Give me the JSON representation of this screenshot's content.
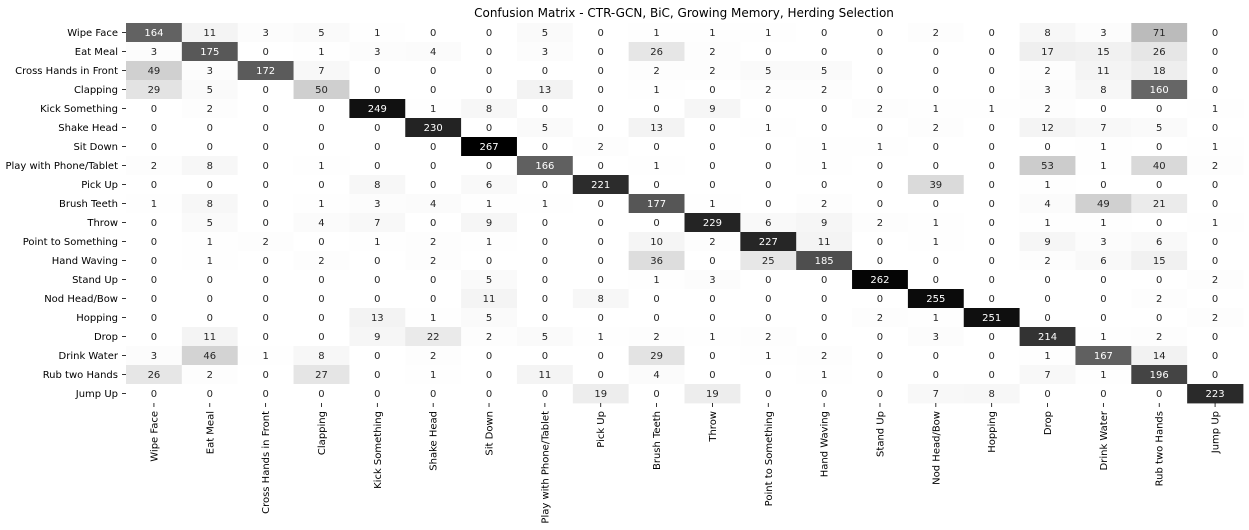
{
  "chart_data": {
    "type": "heatmap",
    "title": "Confusion Matrix - CTR-GCN, BiC, Growing Memory, Herding Selection",
    "colormap": "gray-reversed",
    "colorbar": false,
    "grid": false,
    "legend": "none",
    "vmin": 0,
    "vmax": 267,
    "labels": [
      "Wipe Face",
      "Eat Meal",
      "Cross Hands in Front",
      "Clapping",
      "Kick Something",
      "Shake Head",
      "Sit Down",
      "Play with Phone/Tablet",
      "Pick Up",
      "Brush Teeth",
      "Throw",
      "Point to Something",
      "Hand Waving",
      "Stand Up",
      "Nod Head/Bow",
      "Hopping",
      "Drop",
      "Drink Water",
      "Rub two Hands",
      "Jump Up"
    ],
    "matrix": [
      [
        164,
        11,
        3,
        5,
        1,
        0,
        0,
        5,
        0,
        1,
        1,
        1,
        0,
        0,
        2,
        0,
        8,
        3,
        71,
        0
      ],
      [
        3,
        175,
        0,
        1,
        3,
        4,
        0,
        3,
        0,
        26,
        2,
        0,
        0,
        0,
        0,
        0,
        17,
        15,
        26,
        0
      ],
      [
        49,
        3,
        172,
        7,
        0,
        0,
        0,
        0,
        0,
        2,
        2,
        5,
        5,
        0,
        0,
        0,
        2,
        11,
        18,
        0
      ],
      [
        29,
        5,
        0,
        50,
        0,
        0,
        0,
        13,
        0,
        1,
        0,
        2,
        2,
        0,
        0,
        0,
        3,
        8,
        160,
        0
      ],
      [
        0,
        2,
        0,
        0,
        249,
        1,
        8,
        0,
        0,
        0,
        9,
        0,
        0,
        2,
        1,
        1,
        2,
        0,
        0,
        1
      ],
      [
        0,
        0,
        0,
        0,
        0,
        230,
        0,
        5,
        0,
        13,
        0,
        1,
        0,
        0,
        2,
        0,
        12,
        7,
        5,
        0
      ],
      [
        0,
        0,
        0,
        0,
        0,
        0,
        267,
        0,
        2,
        0,
        0,
        0,
        1,
        1,
        0,
        0,
        0,
        1,
        0,
        1
      ],
      [
        2,
        8,
        0,
        1,
        0,
        0,
        0,
        166,
        0,
        1,
        0,
        0,
        1,
        0,
        0,
        0,
        53,
        1,
        40,
        2
      ],
      [
        0,
        0,
        0,
        0,
        8,
        0,
        6,
        0,
        221,
        0,
        0,
        0,
        0,
        0,
        39,
        0,
        1,
        0,
        0,
        0
      ],
      [
        1,
        8,
        0,
        1,
        3,
        4,
        1,
        1,
        0,
        177,
        1,
        0,
        2,
        0,
        0,
        0,
        4,
        49,
        21,
        0
      ],
      [
        0,
        5,
        0,
        4,
        7,
        0,
        9,
        0,
        0,
        0,
        229,
        6,
        9,
        2,
        1,
        0,
        1,
        1,
        0,
        1
      ],
      [
        0,
        1,
        2,
        0,
        1,
        2,
        1,
        0,
        0,
        10,
        2,
        227,
        11,
        0,
        1,
        0,
        9,
        3,
        6,
        0
      ],
      [
        0,
        1,
        0,
        2,
        0,
        2,
        0,
        0,
        0,
        36,
        0,
        25,
        185,
        0,
        0,
        0,
        2,
        6,
        15,
        0
      ],
      [
        0,
        0,
        0,
        0,
        0,
        0,
        5,
        0,
        0,
        1,
        3,
        0,
        0,
        262,
        0,
        0,
        0,
        0,
        0,
        2
      ],
      [
        0,
        0,
        0,
        0,
        0,
        0,
        11,
        0,
        8,
        0,
        0,
        0,
        0,
        0,
        255,
        0,
        0,
        0,
        2,
        0
      ],
      [
        0,
        0,
        0,
        0,
        13,
        1,
        5,
        0,
        0,
        0,
        0,
        0,
        0,
        2,
        1,
        251,
        0,
        0,
        0,
        2
      ],
      [
        0,
        11,
        0,
        0,
        9,
        22,
        2,
        5,
        1,
        2,
        1,
        2,
        0,
        0,
        3,
        0,
        214,
        1,
        2,
        0
      ],
      [
        3,
        46,
        1,
        8,
        0,
        2,
        0,
        0,
        0,
        29,
        0,
        1,
        2,
        0,
        0,
        0,
        1,
        167,
        14,
        0
      ],
      [
        26,
        2,
        0,
        27,
        0,
        1,
        0,
        11,
        0,
        4,
        0,
        0,
        1,
        0,
        0,
        0,
        7,
        1,
        196,
        0
      ],
      [
        0,
        0,
        0,
        0,
        0,
        0,
        0,
        0,
        19,
        0,
        19,
        0,
        0,
        0,
        7,
        8,
        0,
        0,
        0,
        223
      ]
    ]
  }
}
